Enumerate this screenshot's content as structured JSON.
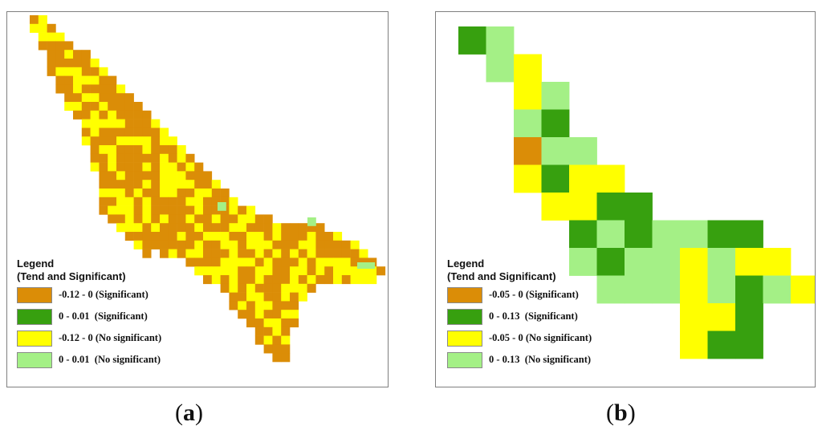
{
  "colors": {
    "sig_neg": "#DB8D07",
    "sig_pos": "#37A00F",
    "nosig_neg": "#FFFF00",
    "nosig_pos": "#A4F086"
  },
  "panel_a": {
    "legend_title_1": "Legend",
    "legend_title_2": "(Tend and Significant)",
    "legend": [
      {
        "label": "-0.12 - 0 (Significant)",
        "color": "#DB8D07"
      },
      {
        "label": "0 - 0.01  (Significant)",
        "color": "#37A00F"
      },
      {
        "label": "-0.12 - 0 (No significant)",
        "color": "#FFFF00"
      },
      {
        "label": "0 - 0.01  (No significant)",
        "color": "#A4F086"
      }
    ],
    "caption_open": "(",
    "caption_letter": "a",
    "caption_close": ")"
  },
  "panel_b": {
    "legend_title_1": "Legend",
    "legend_title_2": "(Tend and Significant)",
    "legend": [
      {
        "label": "-0.05 - 0 (Significant)",
        "color": "#DB8D07"
      },
      {
        "label": "0 - 0.13  (Significant)",
        "color": "#37A00F"
      },
      {
        "label": "-0.05 - 0 (No significant)",
        "color": "#FFFF00"
      },
      {
        "label": "0 - 0.13  (No significant)",
        "color": "#A4F086"
      }
    ],
    "caption_open": "(",
    "caption_letter": "b",
    "caption_close": ")"
  }
}
